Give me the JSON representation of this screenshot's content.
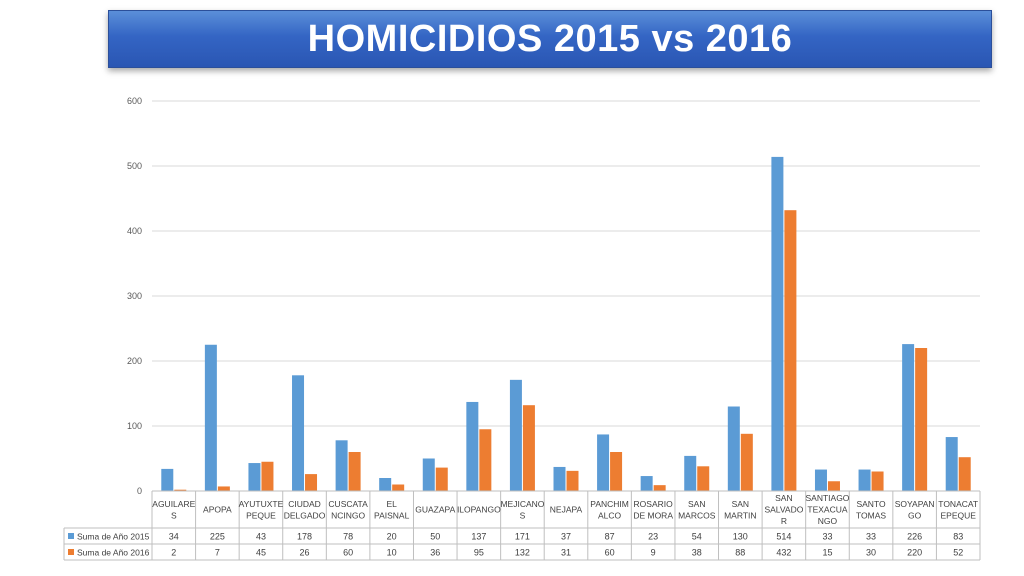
{
  "title": "HOMICIDIOS 2015 vs 2016",
  "chart_data": {
    "type": "bar",
    "categories": [
      [
        "AGUILARE",
        "S"
      ],
      [
        "APOPA"
      ],
      [
        "AYUTUXTE",
        "PEQUE"
      ],
      [
        "CIUDAD",
        "DELGADO"
      ],
      [
        "CUSCATA",
        "NCINGO"
      ],
      [
        "EL",
        "PAISNAL"
      ],
      [
        "GUAZAPA"
      ],
      [
        "ILOPANGO"
      ],
      [
        "MEJICANO",
        "S"
      ],
      [
        "NEJAPA"
      ],
      [
        "PANCHIM",
        "ALCO"
      ],
      [
        "ROSARIO",
        "DE MORA"
      ],
      [
        "SAN",
        "MARCOS"
      ],
      [
        "SAN",
        "MARTIN"
      ],
      [
        "SAN",
        "SALVADO",
        "R"
      ],
      [
        "SANTIAGO",
        "TEXACUA",
        "NGO"
      ],
      [
        "SANTO",
        "TOMAS"
      ],
      [
        "SOYAPAN",
        "GO"
      ],
      [
        "TONACAT",
        "EPEQUE"
      ]
    ],
    "series": [
      {
        "name": "Suma de Año 2015",
        "color": "#5b9bd5",
        "values": [
          34,
          225,
          43,
          178,
          78,
          20,
          50,
          137,
          171,
          37,
          87,
          23,
          54,
          130,
          514,
          33,
          33,
          226,
          83
        ]
      },
      {
        "name": "Suma de Año 2016",
        "color": "#ed7d31",
        "values": [
          2,
          7,
          45,
          26,
          60,
          10,
          36,
          95,
          132,
          31,
          60,
          9,
          38,
          88,
          432,
          15,
          30,
          220,
          52
        ]
      }
    ],
    "ylim": [
      0,
      600
    ],
    "yticks": [
      0,
      100,
      200,
      300,
      400,
      500,
      600
    ],
    "grid": true,
    "legend": "data-table"
  }
}
